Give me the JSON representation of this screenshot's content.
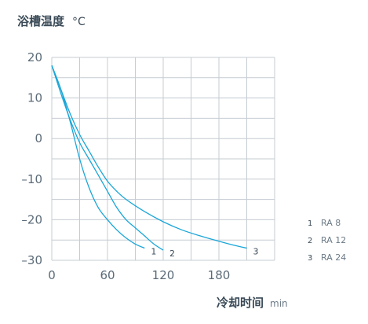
{
  "chart_data": {
    "type": "line",
    "title": "浴槽温度",
    "title_unit": "°C",
    "xlabel": "冷却时间",
    "xlabel_unit": "min",
    "xlim": [
      0,
      240
    ],
    "ylim": [
      -30,
      20
    ],
    "x_ticks": [
      0,
      60,
      120,
      180
    ],
    "y_ticks": [
      20,
      10,
      0,
      -10,
      -20,
      -30
    ],
    "y_tick_labels": [
      "20",
      "10",
      "0",
      "–10",
      "–20",
      "–30"
    ],
    "x_grid_step": 30,
    "y_grid_step": 5,
    "grid": true,
    "legend_position": "right",
    "line_color": "#1aa6d8",
    "grid_color": "#c5ccd2",
    "series": [
      {
        "label_num": "1",
        "name": "RA 8",
        "x": [
          0,
          10,
          20,
          30,
          40,
          50,
          60,
          70,
          80,
          90,
          100
        ],
        "y": [
          18,
          12,
          4,
          -5,
          -12,
          -17,
          -20,
          -22.5,
          -24.5,
          -26,
          -27
        ]
      },
      {
        "label_num": "2",
        "name": "RA 12",
        "x": [
          0,
          10,
          20,
          30,
          40,
          50,
          60,
          70,
          80,
          90,
          100,
          110,
          120
        ],
        "y": [
          18,
          11,
          4.5,
          -1,
          -5,
          -9,
          -13,
          -17,
          -20,
          -22,
          -24,
          -26,
          -27.5
        ]
      },
      {
        "label_num": "3",
        "name": "RA 24",
        "x": [
          0,
          10,
          20,
          30,
          40,
          50,
          60,
          70,
          80,
          100,
          120,
          140,
          160,
          180,
          200,
          210
        ],
        "y": [
          18,
          12,
          6,
          1,
          -3,
          -7,
          -10.5,
          -13,
          -15,
          -18,
          -20.5,
          -22.5,
          -24,
          -25.3,
          -26.5,
          -27
        ]
      }
    ]
  }
}
